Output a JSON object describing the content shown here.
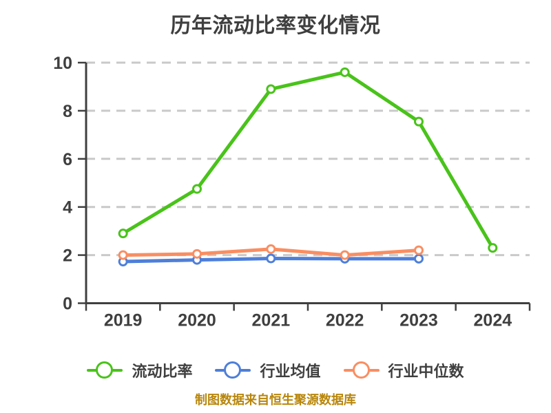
{
  "chart_data": {
    "type": "line",
    "title": "历年流动比率变化情况",
    "footer": "制图数据来自恒生聚源数据库",
    "categories": [
      "2019",
      "2020",
      "2021",
      "2022",
      "2023",
      "2024"
    ],
    "series": [
      {
        "name": "流动比率",
        "color": "#49c31a",
        "values": [
          2.9,
          4.75,
          8.9,
          9.6,
          7.55,
          2.3
        ]
      },
      {
        "name": "行业均值",
        "color": "#4e7fd9",
        "values": [
          1.73,
          1.8,
          1.86,
          1.85,
          1.85,
          null
        ]
      },
      {
        "name": "行业中位数",
        "color": "#f98e62",
        "values": [
          2.0,
          2.05,
          2.25,
          2.0,
          2.2,
          null
        ]
      }
    ],
    "ylim": [
      0,
      10
    ],
    "yticks": [
      0,
      2,
      4,
      6,
      8,
      10
    ],
    "grid": "horizontal-dashed",
    "legend_position": "bottom",
    "marker_style": "circle-white-fill",
    "colors": {
      "text": "#3f3f3f",
      "grid": "#c9c9c9",
      "source": "#b8860b"
    }
  }
}
